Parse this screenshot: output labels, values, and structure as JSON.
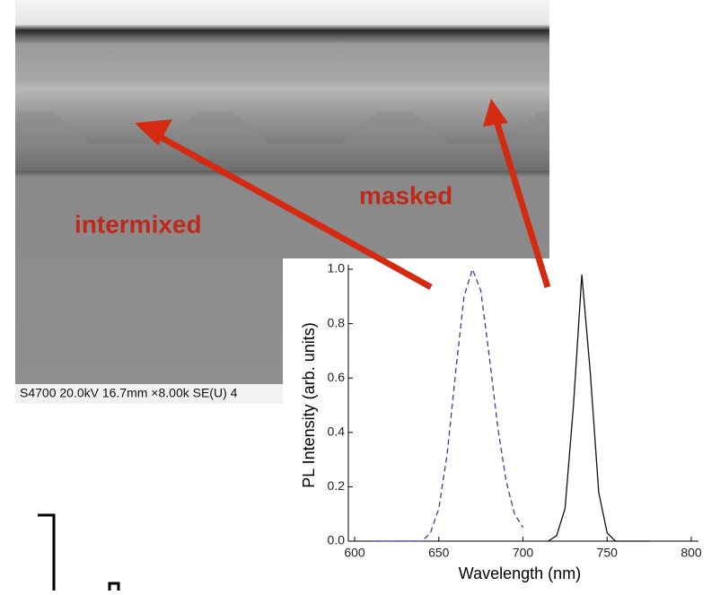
{
  "annotations": {
    "intermixed": "intermixed",
    "masked": "masked",
    "sem_caption": "S4700 20.0kV 16.7mm ×8.00k SE(U) 4"
  },
  "chart_data": {
    "type": "line",
    "xlabel": "Wavelength (nm)",
    "ylabel": "PL Intensity (arb. units)",
    "x": [
      600,
      605,
      610,
      615,
      620,
      625,
      630,
      635,
      640,
      645,
      650,
      655,
      660,
      665,
      670,
      675,
      680,
      685,
      690,
      695,
      700,
      705,
      710,
      715,
      720,
      725,
      730,
      735,
      740,
      745,
      750,
      755,
      760,
      765,
      770,
      775
    ],
    "series": [
      {
        "color": "#3b3b9e",
        "dash": true,
        "values": [
          null,
          null,
          0,
          0,
          0,
          0,
          0,
          0,
          0,
          0.03,
          0.12,
          0.32,
          0.62,
          0.9,
          1.0,
          0.92,
          0.68,
          0.42,
          0.22,
          0.1,
          0.05,
          null,
          null,
          null,
          null,
          null,
          null,
          null,
          null,
          null,
          null,
          null,
          null,
          null,
          null,
          null
        ]
      },
      {
        "color": "#111111",
        "dash": false,
        "values": [
          null,
          null,
          null,
          null,
          null,
          null,
          null,
          null,
          null,
          null,
          null,
          null,
          null,
          null,
          null,
          null,
          null,
          null,
          null,
          null,
          null,
          null,
          null,
          0,
          0.02,
          0.12,
          0.5,
          0.98,
          0.62,
          0.18,
          0.03,
          0,
          0,
          0,
          0,
          0
        ]
      }
    ],
    "xlim": [
      600,
      800
    ],
    "xticks": [
      600,
      650,
      700,
      750,
      800
    ],
    "ylim": [
      0,
      1.0
    ],
    "yticks": [
      {
        "value": 0,
        "label": "0.0"
      },
      0.2,
      0.4,
      0.6,
      0.8,
      {
        "value": 1.0,
        "label": "1.0"
      }
    ]
  }
}
